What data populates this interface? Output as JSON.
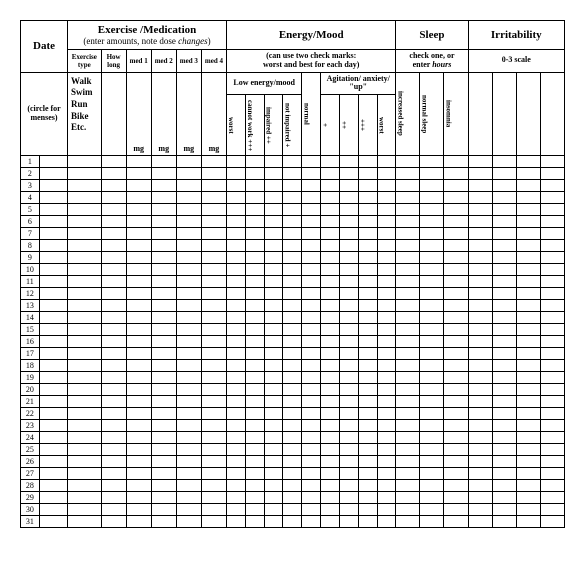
{
  "headers": {
    "date": "Date",
    "date_sub": "(circle for menses)",
    "exercise_medication": "Exercise /Medication",
    "exercise_sub": "(enter amounts, note dose changes)",
    "energy_mood": "Energy/Mood",
    "energy_sub": "(can use two check marks:\nworst and best for each day)",
    "sleep": "Sleep",
    "sleep_sub": "check one, or enter hours",
    "irritability": "Irritability",
    "irritability_sub": "0-3 scale"
  },
  "exercise_cols": {
    "type": "Exercise type",
    "how_long": "How long",
    "med1": "med 1",
    "med2": "med 2",
    "med3": "med 3",
    "med4": "med 4",
    "list": "Walk\nSwim\nRun\nBike\nEtc.",
    "mg": "mg"
  },
  "energy_groups": {
    "low": "Low energy/mood",
    "agitation": "Agitation/ anxiety/ \"up\""
  },
  "energy_levels": {
    "worst": "worst",
    "cannot_work": "cannot work +++",
    "impaired": "impaired ++",
    "not_impaired": "not impaired +",
    "normal": "normal"
  },
  "sleep_cols": {
    "increased": "increased sleep",
    "normal": "normal sleep",
    "insomnia": "insomnia"
  },
  "row_count": 31,
  "style": {
    "border_color": "#000000",
    "bg_color": "#ffffff"
  }
}
